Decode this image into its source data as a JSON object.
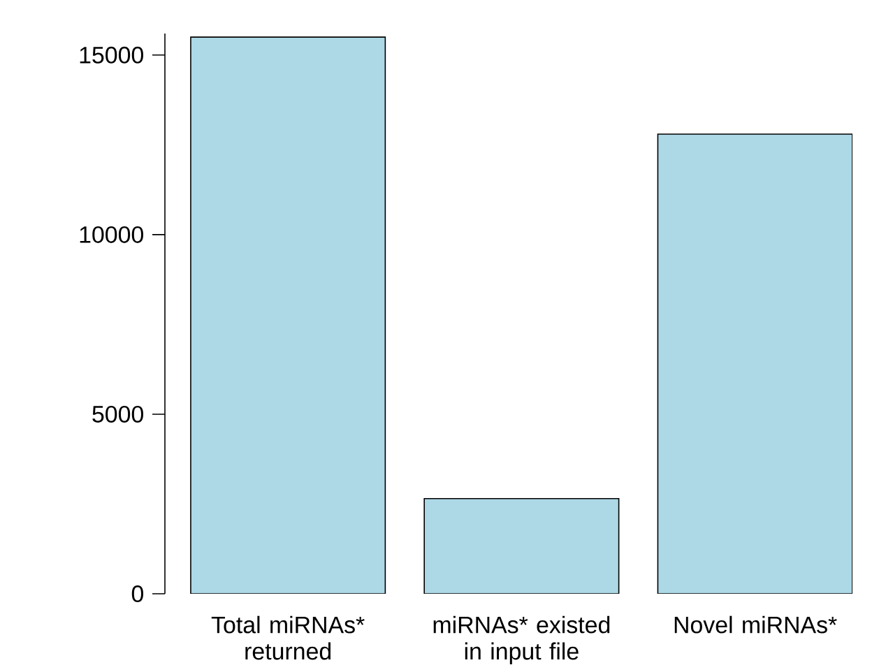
{
  "chart_data": {
    "type": "bar",
    "categories": [
      "Total miRNAs* returned",
      "miRNAs* existed in input file",
      "Novel miRNAs*"
    ],
    "values": [
      15500,
      2650,
      12800
    ],
    "color": "#add8e6",
    "ylim": [
      0,
      15600
    ],
    "yticks": [
      0,
      5000,
      10000,
      15000
    ]
  }
}
